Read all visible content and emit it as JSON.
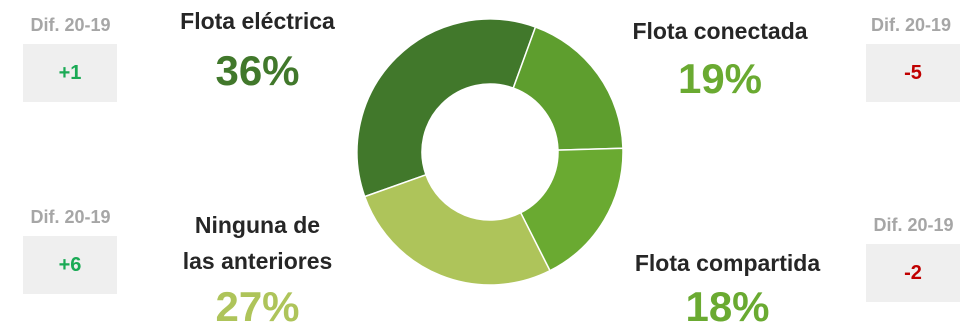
{
  "chart_data": {
    "type": "pie",
    "categories": [
      "Flota eléctrica",
      "Flota conectada",
      "Flota compartida",
      "Ninguna de las anteriores"
    ],
    "values": [
      36,
      19,
      18,
      27
    ],
    "percent_labels": [
      "36%",
      "19%",
      "18%",
      "27%"
    ],
    "colors": [
      "#41782b",
      "#5e9e2e",
      "#6aaa31",
      "#aec45a"
    ],
    "donut": true,
    "title": "",
    "legend": "none"
  },
  "labels": {
    "electrica": "Flota eléctrica",
    "conectada": "Flota conectada",
    "compartida": "Flota compartida",
    "ninguna_line1": "Ninguna de",
    "ninguna_line2": "las anteriores"
  },
  "differences": {
    "title": "Dif. 20-19",
    "electrica": "+1",
    "conectada": "-5",
    "compartida": "-2",
    "ninguna": "+6"
  }
}
